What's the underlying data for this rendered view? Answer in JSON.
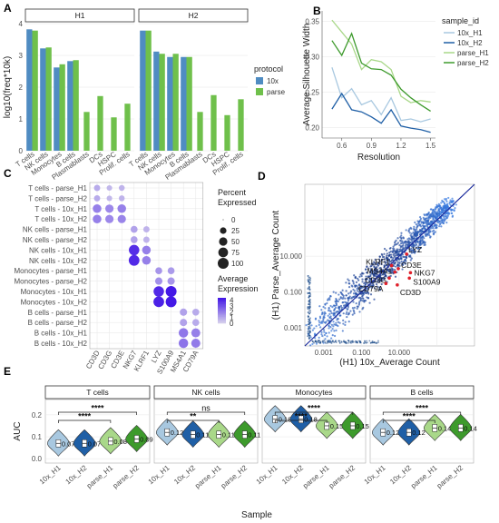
{
  "panels": [
    "A",
    "B",
    "C",
    "D",
    "E"
  ],
  "colors": {
    "10x": "#4F8CC2",
    "parse": "#6FC04B",
    "10x_H1": "#A8C8E0",
    "10x_H2": "#1F5FA6",
    "parse_H1": "#A9D889",
    "parse_H2": "#3D9A2C"
  },
  "chart_data": [
    {
      "panel": "A",
      "type": "bar",
      "facets": [
        "H1",
        "H2"
      ],
      "ylabel": "log10(freq*10k)",
      "ylim": [
        0,
        4
      ],
      "yticks": [
        0,
        1,
        2,
        3,
        4
      ],
      "categories": [
        "T cells",
        "NK cells",
        "Monocytes",
        "B cells",
        "Plasmablasts",
        "DCs",
        "HSPC",
        "Prolif. cells"
      ],
      "legend_title": "protocol",
      "legend_labels": [
        "10x",
        "parse"
      ],
      "series": [
        {
          "facet": "H1",
          "name": "10x",
          "values": [
            3.82,
            3.22,
            2.62,
            2.82,
            null,
            null,
            null,
            null
          ]
        },
        {
          "facet": "H1",
          "name": "parse",
          "values": [
            3.78,
            3.25,
            2.72,
            2.85,
            1.22,
            1.72,
            1.05,
            1.48
          ]
        },
        {
          "facet": "H2",
          "name": "10x",
          "values": [
            3.78,
            3.12,
            2.95,
            2.95,
            null,
            null,
            null,
            null
          ]
        },
        {
          "facet": "H2",
          "name": "parse",
          "values": [
            3.78,
            3.05,
            3.05,
            2.95,
            1.22,
            1.75,
            1.12,
            1.62
          ]
        }
      ]
    },
    {
      "panel": "B",
      "type": "line",
      "xlabel": "Resolution",
      "ylabel": "Average Silhouette Width",
      "xticks": [
        0.6,
        0.9,
        1.2,
        1.5
      ],
      "yticks": [
        0.2,
        0.25,
        0.3,
        0.35
      ],
      "xlim": [
        0.4,
        1.55
      ],
      "ylim": [
        0.185,
        0.365
      ],
      "legend_title": "sample_id",
      "x": [
        0.5,
        0.6,
        0.7,
        0.8,
        0.9,
        1.0,
        1.1,
        1.2,
        1.3,
        1.4,
        1.5
      ],
      "series": [
        {
          "name": "10x_H1",
          "values": [
            0.285,
            0.242,
            0.255,
            0.232,
            0.238,
            0.218,
            0.242,
            0.21,
            0.212,
            0.208,
            0.212
          ]
        },
        {
          "name": "10x_H2",
          "values": [
            0.226,
            0.248,
            0.225,
            0.222,
            0.215,
            0.206,
            0.225,
            0.202,
            0.199,
            0.197,
            0.193
          ]
        },
        {
          "name": "parse_H1",
          "values": [
            0.352,
            0.335,
            0.318,
            0.282,
            0.296,
            0.293,
            0.282,
            0.244,
            0.235,
            0.238,
            0.236
          ]
        },
        {
          "name": "parse_H2",
          "values": [
            0.323,
            0.302,
            0.333,
            0.291,
            0.283,
            0.282,
            0.274,
            0.254,
            0.242,
            0.232,
            0.223
          ]
        }
      ]
    },
    {
      "panel": "C",
      "type": "scatter",
      "subtype": "dotplot",
      "rows": [
        "T cells - parse_H1",
        "T cells - parse_H2",
        "T cells - 10x_H1",
        "T cells - 10x_H2",
        "NK cells - parse_H1",
        "NK cells - parse_H2",
        "NK cells - 10x_H1",
        "NK cells - 10x_H2",
        "Monocytes - parse_H1",
        "Monocytes - parse_H2",
        "Monocytes - 10x_H1",
        "Monocytes - 10x_H2",
        "B cells - parse_H1",
        "B cells - parse_H2",
        "B cells - 10x_H1",
        "B cells - 10x_H2"
      ],
      "genes": [
        "CD3D",
        "CD3G",
        "CD3E",
        "NKG7",
        "KLRF1",
        "LYZ",
        "S100A9",
        "MS4A1",
        "CD79A"
      ],
      "size_legend_title": "Percent\nExpressed",
      "size_legend": [
        0,
        25,
        50,
        75,
        100
      ],
      "color_legend_title": "Average\nExpression",
      "color_legend_ticks": [
        0,
        1,
        2,
        3,
        4
      ],
      "cells": [
        [
          0,
          0,
          22,
          1.0
        ],
        [
          0,
          1,
          15,
          0.7
        ],
        [
          0,
          2,
          18,
          0.8
        ],
        [
          1,
          0,
          22,
          1.0
        ],
        [
          1,
          1,
          15,
          0.7
        ],
        [
          1,
          2,
          18,
          0.8
        ],
        [
          2,
          0,
          55,
          2.0
        ],
        [
          2,
          1,
          50,
          1.8
        ],
        [
          2,
          2,
          55,
          2.0
        ],
        [
          3,
          0,
          55,
          2.0
        ],
        [
          3,
          1,
          50,
          1.8
        ],
        [
          3,
          2,
          50,
          1.9
        ],
        [
          4,
          3,
          30,
          1.2
        ],
        [
          4,
          4,
          22,
          0.8
        ],
        [
          5,
          3,
          30,
          1.2
        ],
        [
          5,
          4,
          22,
          0.8
        ],
        [
          6,
          3,
          90,
          3.9
        ],
        [
          6,
          4,
          55,
          2.0
        ],
        [
          7,
          3,
          95,
          4.0
        ],
        [
          7,
          4,
          55,
          2.0
        ],
        [
          8,
          5,
          30,
          1.5
        ],
        [
          8,
          6,
          30,
          1.4
        ],
        [
          9,
          5,
          35,
          1.6
        ],
        [
          9,
          6,
          35,
          1.5
        ],
        [
          10,
          5,
          90,
          4.0
        ],
        [
          10,
          6,
          100,
          4.4
        ],
        [
          11,
          5,
          95,
          4.2
        ],
        [
          11,
          6,
          100,
          4.4
        ],
        [
          12,
          7,
          35,
          1.2
        ],
        [
          12,
          8,
          30,
          1.0
        ],
        [
          13,
          7,
          35,
          1.2
        ],
        [
          13,
          8,
          30,
          1.0
        ],
        [
          14,
          7,
          70,
          2.2
        ],
        [
          14,
          8,
          60,
          2.0
        ],
        [
          15,
          7,
          70,
          2.3
        ],
        [
          15,
          8,
          62,
          2.1
        ]
      ]
    },
    {
      "panel": "D",
      "type": "scatter",
      "xlabel": "(H1) 10x_Average Count",
      "ylabel": "(H1) Parse_Average Count",
      "scale": "log10",
      "xticks": [
        "0.001",
        "0.100",
        "10.000"
      ],
      "yticks": [
        "0.001",
        "0.100",
        "10.000"
      ],
      "xlim": [
        0.0001,
        100000
      ],
      "ylim": [
        0.0001,
        100000
      ],
      "labeled_genes": [
        {
          "gene": "LYZ",
          "x": 25,
          "y": 13
        },
        {
          "gene": "KLRF1",
          "x": 4,
          "y": 3
        },
        {
          "gene": "CD3E",
          "x": 9,
          "y": 2
        },
        {
          "gene": "MS4A1",
          "x": 6,
          "y": 1.3
        },
        {
          "gene": "NKG7",
          "x": 40,
          "y": 1.2
        },
        {
          "gene": "CD3G",
          "x": 3,
          "y": 0.6
        },
        {
          "gene": "S100A9",
          "x": 35,
          "y": 0.6
        },
        {
          "gene": "CD79A",
          "x": 2,
          "y": 0.3
        },
        {
          "gene": "CD3D",
          "x": 8,
          "y": 0.25
        }
      ]
    },
    {
      "panel": "E",
      "type": "violin",
      "xlabel": "Sample",
      "ylabel": "AUC",
      "yticks": [
        0.0,
        0.1,
        0.2
      ],
      "ylim": [
        -0.02,
        0.27
      ],
      "samples": [
        "10x_H1",
        "10x_H2",
        "parse_H1",
        "parse_H2"
      ],
      "facets": [
        {
          "name": "T cells",
          "medians": [
            0.07,
            0.07,
            0.08,
            0.09
          ],
          "sig": [
            {
              "a": 0,
              "b": 2,
              "label": "****"
            },
            {
              "a": 0,
              "b": 3,
              "label": "****"
            }
          ]
        },
        {
          "name": "NK cells",
          "medians": [
            0.12,
            0.11,
            0.11,
            0.11
          ],
          "sig": [
            {
              "a": 0,
              "b": 2,
              "label": "**"
            },
            {
              "a": 0,
              "b": 3,
              "label": "ns"
            }
          ]
        },
        {
          "name": "Monocytes",
          "medians": [
            0.18,
            0.18,
            0.15,
            0.15
          ],
          "sig": [
            {
              "a": 0,
              "b": 2,
              "label": "****"
            },
            {
              "a": 0,
              "b": 3,
              "label": "****"
            }
          ]
        },
        {
          "name": "B cells",
          "medians": [
            0.12,
            0.12,
            0.14,
            0.14
          ],
          "sig": [
            {
              "a": 0,
              "b": 2,
              "label": "****"
            },
            {
              "a": 0,
              "b": 3,
              "label": "****"
            }
          ]
        }
      ]
    }
  ]
}
